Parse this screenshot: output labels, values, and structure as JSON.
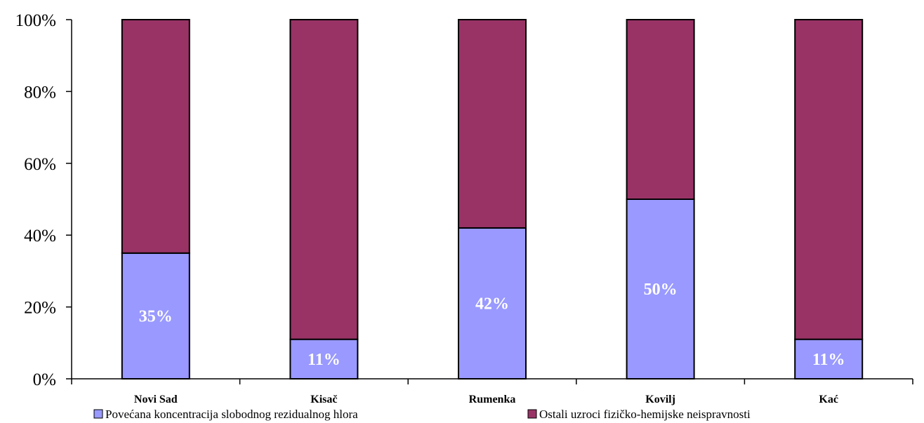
{
  "chart_data": {
    "type": "bar",
    "stacked": true,
    "categories": [
      "Novi Sad",
      "Kisač",
      "Rumenka",
      "Kovilj",
      "Kać"
    ],
    "series": [
      {
        "name": "Povećana koncentracija slobodnog rezidualnog hlora",
        "values": [
          35,
          11,
          42,
          50,
          11
        ],
        "color": "#9999ff",
        "data_labels": [
          "35%",
          "11%",
          "42%",
          "50%",
          "11%"
        ]
      },
      {
        "name": "Ostali uzroci fizičko-hemijske neispravnosti",
        "values": [
          65,
          89,
          58,
          50,
          89
        ],
        "color": "#993366"
      }
    ],
    "ylim": [
      0,
      100
    ],
    "yticks": [
      0,
      20,
      40,
      60,
      80,
      100
    ],
    "ytick_labels": [
      "0%",
      "20%",
      "40%",
      "60%",
      "80%",
      "100%"
    ],
    "grid": false,
    "legend_position": "bottom"
  }
}
